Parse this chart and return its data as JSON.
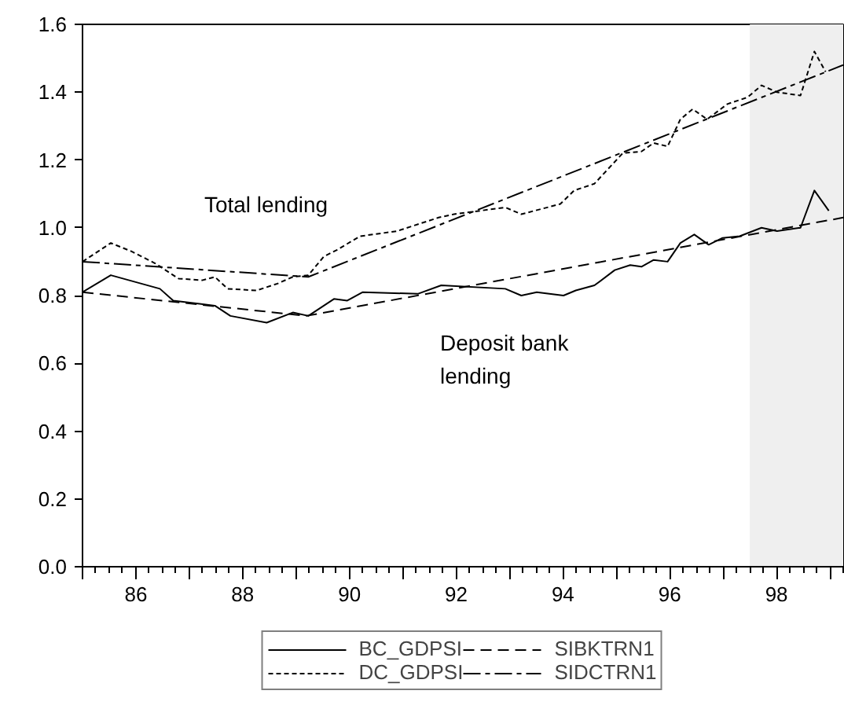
{
  "chart_data": {
    "type": "line",
    "xlim": [
      1985,
      1999.25
    ],
    "ylim": [
      0,
      1.6
    ],
    "xticks": [
      {
        "value": 1985,
        "label": null
      },
      {
        "value": 1986,
        "label": "86"
      },
      {
        "value": 1987,
        "label": null
      },
      {
        "value": 1988,
        "label": "88"
      },
      {
        "value": 1989,
        "label": null
      },
      {
        "value": 1990,
        "label": "90"
      },
      {
        "value": 1991,
        "label": null
      },
      {
        "value": 1992,
        "label": "92"
      },
      {
        "value": 1993,
        "label": null
      },
      {
        "value": 1994,
        "label": "94"
      },
      {
        "value": 1995,
        "label": null
      },
      {
        "value": 1996,
        "label": "96"
      },
      {
        "value": 1997,
        "label": null
      },
      {
        "value": 1998,
        "label": "98"
      },
      {
        "value": 1999,
        "label": null
      }
    ],
    "yticks": [
      {
        "value": 0,
        "label": "0.0"
      },
      {
        "value": 0.2,
        "label": "0.2"
      },
      {
        "value": 0.4,
        "label": "0.4"
      },
      {
        "value": 0.6,
        "label": "0.6"
      },
      {
        "value": 0.8,
        "label": "0.8"
      },
      {
        "value": 1.0,
        "label": "1.0"
      },
      {
        "value": 1.2,
        "label": "1.2"
      },
      {
        "value": 1.4,
        "label": "1.4"
      },
      {
        "value": 1.6,
        "label": "1.6"
      }
    ],
    "grid": false,
    "legend": "bottom",
    "marker": "none",
    "bands": [
      {
        "axis": "x",
        "from": 1997.5,
        "to": 1999.25,
        "color": "#efefef"
      }
    ],
    "annotations": [
      "Total lending",
      "Deposit bank\nlending"
    ],
    "series": [
      {
        "name": "BC_GDPSI",
        "color": "#000000",
        "line_style": "solid",
        "x": [
          1985.0,
          1985.53,
          1986.45,
          1986.7,
          1987.48,
          1987.77,
          1988.45,
          1988.94,
          1989.23,
          1989.71,
          1989.96,
          1990.25,
          1991.28,
          1991.72,
          1992.92,
          1993.22,
          1993.51,
          1994.01,
          1994.24,
          1994.59,
          1994.97,
          1995.26,
          1995.47,
          1995.7,
          1995.96,
          1996.2,
          1996.46,
          1996.73,
          1996.99,
          1997.31,
          1997.72,
          1998.01,
          1998.45,
          1998.71,
          1998.98
        ],
        "values": [
          0.81,
          0.86,
          0.82,
          0.785,
          0.77,
          0.74,
          0.72,
          0.75,
          0.74,
          0.79,
          0.785,
          0.81,
          0.805,
          0.83,
          0.82,
          0.8,
          0.81,
          0.8,
          0.815,
          0.83,
          0.875,
          0.89,
          0.885,
          0.905,
          0.9,
          0.955,
          0.98,
          0.95,
          0.97,
          0.975,
          1.0,
          0.99,
          1.0,
          1.11,
          1.05
        ]
      },
      {
        "name": "DC_GDPSI",
        "color": "#000000",
        "line_style": "dotted",
        "x": [
          1985.0,
          1985.53,
          1985.92,
          1986.36,
          1986.8,
          1987.24,
          1987.48,
          1987.72,
          1988.26,
          1988.65,
          1988.94,
          1989.23,
          1989.52,
          1989.77,
          1990.2,
          1990.89,
          1991.67,
          1991.96,
          1992.92,
          1993.22,
          1993.95,
          1994.21,
          1994.59,
          1995.12,
          1995.47,
          1995.7,
          1995.96,
          1996.2,
          1996.43,
          1996.7,
          1997.08,
          1997.46,
          1997.72,
          1998.01,
          1998.45,
          1998.71,
          1998.92
        ],
        "values": [
          0.9,
          0.955,
          0.93,
          0.895,
          0.85,
          0.845,
          0.855,
          0.82,
          0.815,
          0.835,
          0.855,
          0.86,
          0.915,
          0.935,
          0.975,
          0.99,
          1.03,
          1.04,
          1.06,
          1.04,
          1.07,
          1.11,
          1.13,
          1.22,
          1.225,
          1.25,
          1.24,
          1.32,
          1.35,
          1.32,
          1.365,
          1.385,
          1.42,
          1.4,
          1.39,
          1.52,
          1.46
        ]
      },
      {
        "name": "SIBKTRN1",
        "color": "#000000",
        "line_style": "dashed",
        "x": [
          1985.0,
          1989.19,
          1999.25
        ],
        "values": [
          0.81,
          0.74,
          1.03
        ]
      },
      {
        "name": "SIDCTRN1",
        "color": "#000000",
        "line_style": "dashdot",
        "x": [
          1985.0,
          1989.23,
          1999.25
        ],
        "values": [
          0.9,
          0.855,
          1.48
        ]
      }
    ]
  }
}
